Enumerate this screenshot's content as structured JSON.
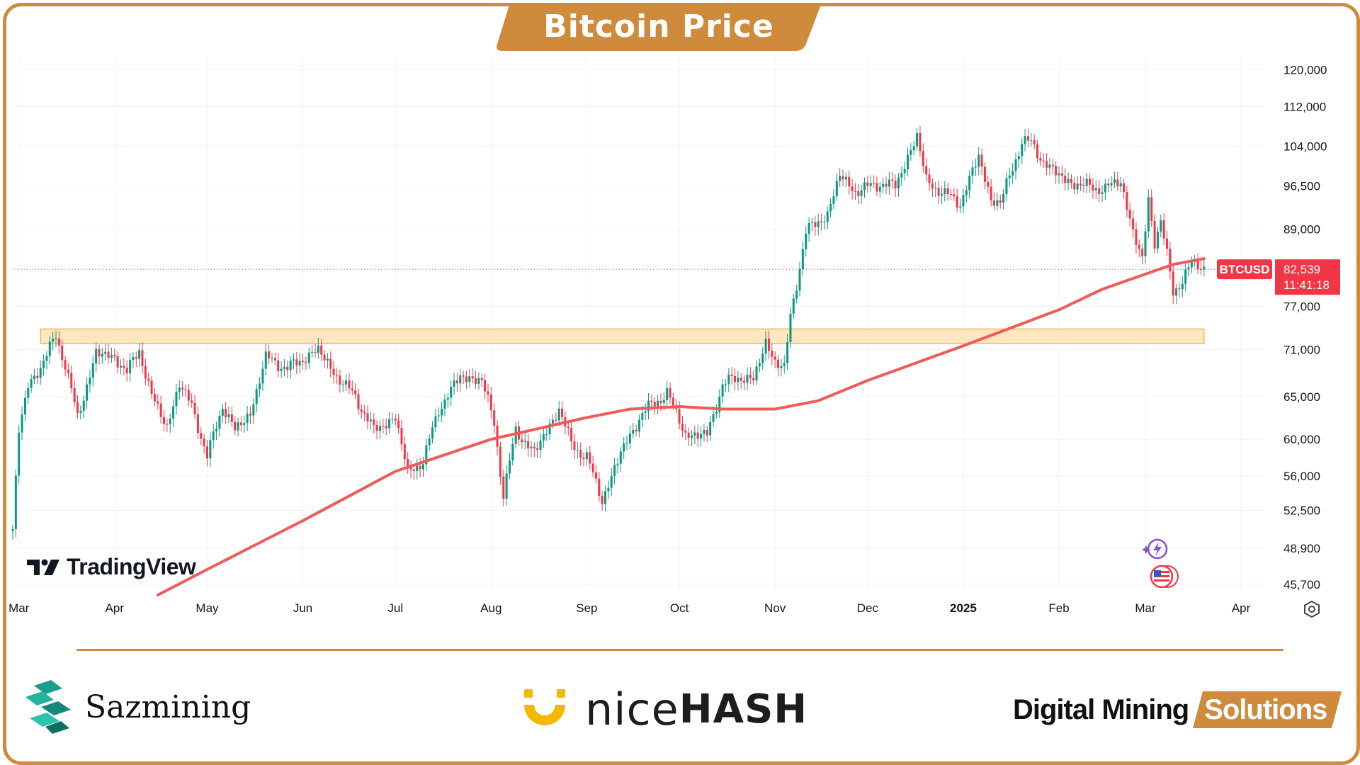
{
  "title": "Bitcoin Price",
  "brand_colors": {
    "frame": "#cf8b3b",
    "price_up": "#089981",
    "price_down": "#f23645",
    "moving_average": "#f05a5a",
    "zone_fill": "#fde7c0",
    "zone_stroke": "#f0a830"
  },
  "price_label": {
    "symbol": "BTCUSD",
    "price": "82,539",
    "countdown": "11:41:18"
  },
  "watermark": "TradingView",
  "icons": [
    "tradingview-logo-icon",
    "lightning-event-icon",
    "us-flag-event-icon",
    "settings-gear-icon"
  ],
  "logos": {
    "sazmining": "Sazmining",
    "nicehash_light": "nice",
    "nicehash_bold": "HASH",
    "dms_main": "Digital Mining",
    "dms_tag": "Solutions"
  },
  "chart_data": {
    "type": "candlestick",
    "symbol": "BTCUSD",
    "y_scale": "log",
    "ylim": [
      44800,
      123000
    ],
    "xlim": [
      "2024-02-28",
      "2025-04-12"
    ],
    "y_ticks": [
      120000,
      112000,
      104000,
      96500,
      89000,
      77000,
      71000,
      65000,
      60000,
      56000,
      52500,
      48900,
      45700
    ],
    "y_tick_labels": [
      "120,000",
      "112,000",
      "104,000",
      "96,500",
      "89,000",
      "77,000",
      "71,000",
      "65,000",
      "60,000",
      "56,000",
      "52,500",
      "48,900",
      "45,700"
    ],
    "x_ticks": [
      "2024-03-01",
      "2024-04-01",
      "2024-05-01",
      "2024-06-01",
      "2024-07-01",
      "2024-08-01",
      "2024-09-01",
      "2024-10-01",
      "2024-11-01",
      "2024-12-01",
      "2025-01-01",
      "2025-02-01",
      "2025-03-01",
      "2025-04-01"
    ],
    "x_tick_labels": [
      "Mar",
      "Apr",
      "May",
      "Jun",
      "Jul",
      "Aug",
      "Sep",
      "Oct",
      "Nov",
      "Dec",
      "2025",
      "Feb",
      "Mar",
      "Apr"
    ],
    "grid": true,
    "last_price": 82539,
    "resistance_zone": {
      "x_start": "2024-03-08",
      "x_end": "2025-03-20",
      "y_low": 71800,
      "y_high": 73800
    },
    "price_path": [
      [
        "2024-02-28",
        50500
      ],
      [
        "2024-03-01",
        61000
      ],
      [
        "2024-03-04",
        66500
      ],
      [
        "2024-03-08",
        68500
      ],
      [
        "2024-03-13",
        73000
      ],
      [
        "2024-03-16",
        69000
      ],
      [
        "2024-03-20",
        62500
      ],
      [
        "2024-03-26",
        70500
      ],
      [
        "2024-04-01",
        70000
      ],
      [
        "2024-04-05",
        68000
      ],
      [
        "2024-04-09",
        71000
      ],
      [
        "2024-04-13",
        65000
      ],
      [
        "2024-04-18",
        61500
      ],
      [
        "2024-04-22",
        66500
      ],
      [
        "2024-04-26",
        64000
      ],
      [
        "2024-05-01",
        58000
      ],
      [
        "2024-05-06",
        64000
      ],
      [
        "2024-05-10",
        61000
      ],
      [
        "2024-05-15",
        63000
      ],
      [
        "2024-05-20",
        70000
      ],
      [
        "2024-05-27",
        68500
      ],
      [
        "2024-06-06",
        71000
      ],
      [
        "2024-06-12",
        67500
      ],
      [
        "2024-06-18",
        65000
      ],
      [
        "2024-06-24",
        61000
      ],
      [
        "2024-07-01",
        62500
      ],
      [
        "2024-07-05",
        56500
      ],
      [
        "2024-07-10",
        57500
      ],
      [
        "2024-07-15",
        63500
      ],
      [
        "2024-07-22",
        67500
      ],
      [
        "2024-07-29",
        67000
      ],
      [
        "2024-08-02",
        62000
      ],
      [
        "2024-08-05",
        54000
      ],
      [
        "2024-08-09",
        61000
      ],
      [
        "2024-08-15",
        58500
      ],
      [
        "2024-08-23",
        63500
      ],
      [
        "2024-08-27",
        59500
      ],
      [
        "2024-09-01",
        58000
      ],
      [
        "2024-09-06",
        53500
      ],
      [
        "2024-09-12",
        58500
      ],
      [
        "2024-09-19",
        63000
      ],
      [
        "2024-09-27",
        65500
      ],
      [
        "2024-10-03",
        60500
      ],
      [
        "2024-10-10",
        60500
      ],
      [
        "2024-10-15",
        66500
      ],
      [
        "2024-10-21",
        67500
      ],
      [
        "2024-10-25",
        67000
      ],
      [
        "2024-10-29",
        72000
      ],
      [
        "2024-11-01",
        69500
      ],
      [
        "2024-11-04",
        68500
      ],
      [
        "2024-11-06",
        75500
      ],
      [
        "2024-11-11",
        88500
      ],
      [
        "2024-11-18",
        91500
      ],
      [
        "2024-11-22",
        98500
      ],
      [
        "2024-11-27",
        95500
      ],
      [
        "2024-12-05",
        97000
      ],
      [
        "2024-12-10",
        96500
      ],
      [
        "2024-12-17",
        106000
      ],
      [
        "2024-12-20",
        97500
      ],
      [
        "2024-12-26",
        95000
      ],
      [
        "2024-12-31",
        93500
      ],
      [
        "2025-01-06",
        102000
      ],
      [
        "2025-01-10",
        94000
      ],
      [
        "2025-01-13",
        93500
      ],
      [
        "2025-01-20",
        105000
      ],
      [
        "2025-01-23",
        104500
      ],
      [
        "2025-01-27",
        101000
      ],
      [
        "2025-02-03",
        97500
      ],
      [
        "2025-02-09",
        96500
      ],
      [
        "2025-02-16",
        96000
      ],
      [
        "2025-02-21",
        97500
      ],
      [
        "2025-02-25",
        88500
      ],
      [
        "2025-02-28",
        84000
      ],
      [
        "2025-03-02",
        94000
      ],
      [
        "2025-03-04",
        87000
      ],
      [
        "2025-03-06",
        90500
      ],
      [
        "2025-03-10",
        79000
      ],
      [
        "2025-03-13",
        81000
      ],
      [
        "2025-03-16",
        83500
      ],
      [
        "2025-03-20",
        82539
      ]
    ],
    "moving_average_path": [
      [
        "2024-04-15",
        44800
      ],
      [
        "2024-05-01",
        47000
      ],
      [
        "2024-06-01",
        51500
      ],
      [
        "2024-07-01",
        56500
      ],
      [
        "2024-08-01",
        60000
      ],
      [
        "2024-09-01",
        62500
      ],
      [
        "2024-09-15",
        63500
      ],
      [
        "2024-10-01",
        63800
      ],
      [
        "2024-10-15",
        63500
      ],
      [
        "2024-11-01",
        63500
      ],
      [
        "2024-11-15",
        64500
      ],
      [
        "2024-12-01",
        67000
      ],
      [
        "2025-01-01",
        71500
      ],
      [
        "2025-02-01",
        76500
      ],
      [
        "2025-02-15",
        79500
      ],
      [
        "2025-03-01",
        81800
      ],
      [
        "2025-03-10",
        83300
      ],
      [
        "2025-03-20",
        84200
      ]
    ]
  }
}
